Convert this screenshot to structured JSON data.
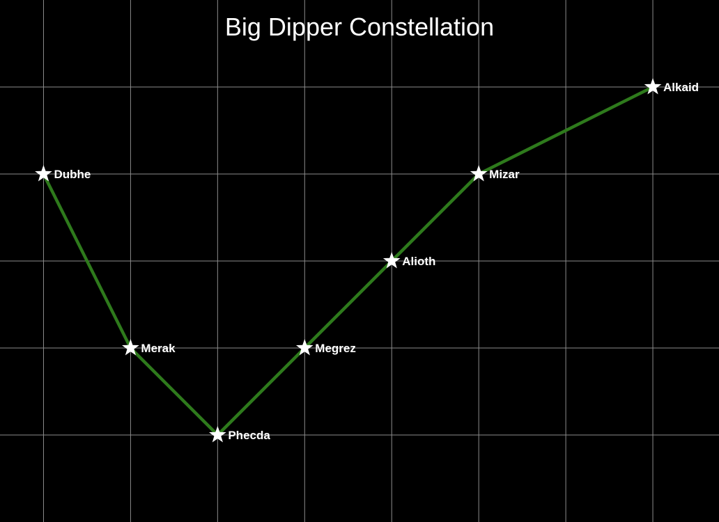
{
  "chart_data": {
    "type": "line",
    "title": "Big Dipper Constellation",
    "xlabel": "",
    "ylabel": "",
    "grid": true,
    "xlim": [
      0.5,
      8.76
    ],
    "ylim": [
      2,
      8
    ],
    "x_grid": [
      1,
      2,
      3,
      4,
      5,
      6,
      7,
      8
    ],
    "y_grid": [
      3,
      4,
      5,
      6,
      7
    ],
    "points": [
      {
        "name": "Dubhe",
        "x": 1,
        "y": 6
      },
      {
        "name": "Merak",
        "x": 2,
        "y": 4
      },
      {
        "name": "Phecda",
        "x": 3,
        "y": 3
      },
      {
        "name": "Megrez",
        "x": 4,
        "y": 4
      },
      {
        "name": "Alioth",
        "x": 5,
        "y": 5
      },
      {
        "name": "Mizar",
        "x": 6,
        "y": 6
      },
      {
        "name": "Alkaid",
        "x": 8,
        "y": 7
      }
    ],
    "colors": {
      "background": "#000000",
      "line": "#2e7a1c",
      "star": "#ffffff",
      "grid": "#8c8c8c",
      "text": "#ffffff"
    }
  }
}
